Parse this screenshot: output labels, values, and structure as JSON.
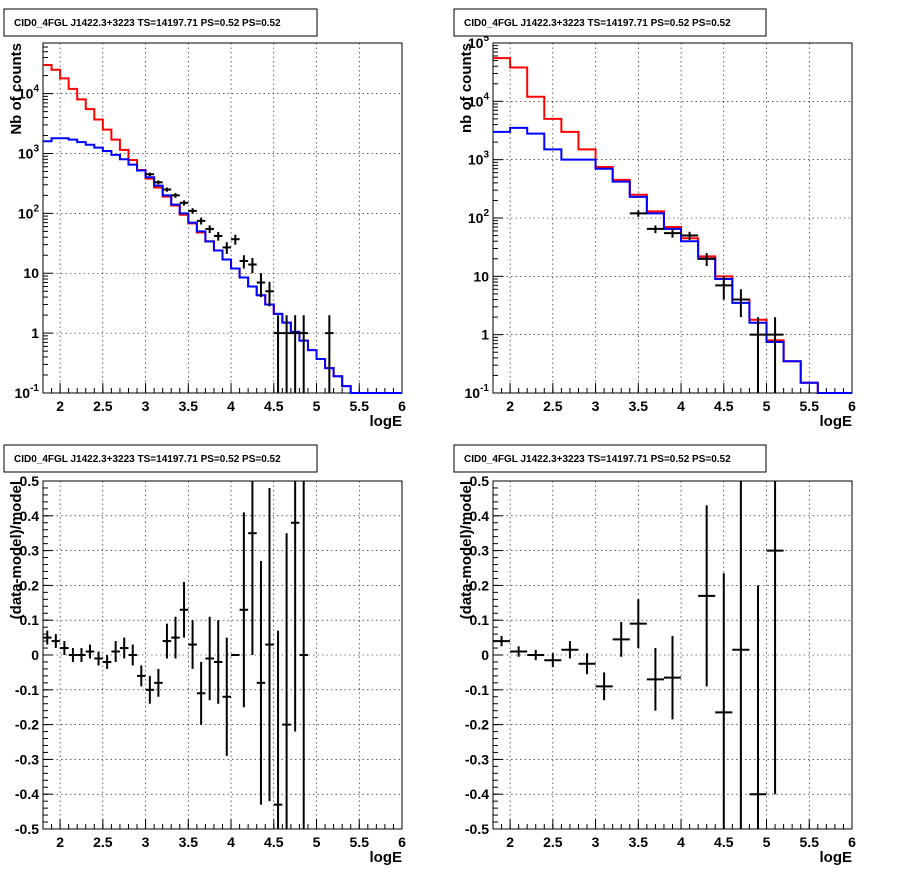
{
  "chart_data": [
    {
      "type": "line",
      "panel": "top-left",
      "title": "CID0_4FGL J1422.3+3223 TS=14197.71 PS=0.52 PS=0.52",
      "xlabel": "logE",
      "ylabel": "Nb of counts",
      "xlim": [
        1.8,
        6.0
      ],
      "ylim": [
        0.1,
        70000
      ],
      "log_y": true,
      "grid": true,
      "x_ticks": [
        "2",
        "2.5",
        "3",
        "3.5",
        "4",
        "4.5",
        "5",
        "5.5",
        "6"
      ],
      "y_ticks": [
        "10^-1",
        "1",
        "10",
        "10^2",
        "10^3",
        "10^4"
      ],
      "bin_edges": [
        1.8,
        1.9,
        2.0,
        2.1,
        2.2,
        2.3,
        2.4,
        2.5,
        2.6,
        2.7,
        2.8,
        2.9,
        3.0,
        3.1,
        3.2,
        3.3,
        3.4,
        3.5,
        3.6,
        3.7,
        3.8,
        3.9,
        4.0,
        4.1,
        4.2,
        4.3,
        4.4,
        4.5,
        4.6,
        4.7,
        4.8,
        4.9,
        5.0,
        5.1,
        5.2,
        5.3,
        5.4,
        5.5,
        5.6,
        5.7,
        5.8,
        5.9,
        6.0
      ],
      "series": [
        {
          "color": "#ff0000",
          "values": [
            30000,
            25000,
            18000,
            12000,
            8000,
            5500,
            3700,
            2500,
            1700,
            1150,
            780,
            530,
            380,
            270,
            190,
            135,
            95,
            68,
            48,
            34,
            24,
            17,
            12,
            8.5,
            6,
            4.3,
            3.0,
            2.1,
            1.5,
            1.05,
            0.75,
            0.52,
            0.37,
            0.26,
            0.19,
            0.13,
            0.09,
            0.09,
            0.09,
            0.09,
            0.09,
            0.09
          ]
        },
        {
          "color": "#0000ff",
          "values": [
            1600,
            1800,
            1800,
            1700,
            1550,
            1400,
            1250,
            1100,
            950,
            800,
            650,
            520,
            400,
            290,
            200,
            140,
            100,
            70,
            50,
            34,
            24,
            17,
            12,
            8.5,
            6,
            4.3,
            3.0,
            2.1,
            1.5,
            1.05,
            0.75,
            0.52,
            0.37,
            0.26,
            0.19,
            0.13,
            0.1,
            0.1,
            0.1,
            0.1,
            0.1,
            0.1
          ]
        }
      ],
      "points": [
        {
          "x": 3.05,
          "y": 450,
          "yerr": 30
        },
        {
          "x": 3.15,
          "y": 330,
          "yerr": 25
        },
        {
          "x": 3.25,
          "y": 250,
          "yerr": 20
        },
        {
          "x": 3.35,
          "y": 200,
          "yerr": 18
        },
        {
          "x": 3.45,
          "y": 150,
          "yerr": 15
        },
        {
          "x": 3.55,
          "y": 110,
          "yerr": 12
        },
        {
          "x": 3.65,
          "y": 75,
          "yerr": 10
        },
        {
          "x": 3.75,
          "y": 55,
          "yerr": 8
        },
        {
          "x": 3.85,
          "y": 42,
          "yerr": 7
        },
        {
          "x": 3.95,
          "y": 27,
          "yerr": 6
        },
        {
          "x": 4.05,
          "y": 37,
          "yerr": 7
        },
        {
          "x": 4.15,
          "y": 16,
          "yerr": 4
        },
        {
          "x": 4.25,
          "y": 14,
          "yerr": 4
        },
        {
          "x": 4.35,
          "y": 7,
          "yerr": 3
        },
        {
          "x": 4.45,
          "y": 5,
          "yerr": 2.2
        },
        {
          "x": 4.55,
          "y": 1,
          "yerr": 0.99
        },
        {
          "x": 4.65,
          "y": 1,
          "yerr": 0.99
        },
        {
          "x": 4.75,
          "y": 1,
          "yerr": 0.99
        },
        {
          "x": 4.85,
          "y": 1,
          "yerr": 0.99
        },
        {
          "x": 5.15,
          "y": 1,
          "yerr": 0.99
        }
      ]
    },
    {
      "type": "line",
      "panel": "top-right",
      "title": "CID0_4FGL J1422.3+3223 TS=14197.71 PS=0.52 PS=0.52",
      "xlabel": "logE",
      "ylabel": "nb of counts",
      "xlim": [
        1.8,
        6.0
      ],
      "ylim": [
        0.1,
        100000
      ],
      "log_y": true,
      "grid": true,
      "x_ticks": [
        "2",
        "2.5",
        "3",
        "3.5",
        "4",
        "4.5",
        "5",
        "5.5",
        "6"
      ],
      "y_ticks": [
        "10^-1",
        "1",
        "10",
        "10^2",
        "10^3",
        "10^4",
        "10^5"
      ],
      "bin_edges": [
        1.8,
        2.0,
        2.2,
        2.4,
        2.6,
        2.8,
        3.0,
        3.2,
        3.4,
        3.6,
        3.8,
        4.0,
        4.2,
        4.4,
        4.6,
        4.8,
        5.0,
        5.2,
        5.4,
        5.6,
        5.8,
        6.0
      ],
      "series": [
        {
          "color": "#ff0000",
          "values": [
            55000,
            38000,
            12000,
            5000,
            3000,
            1500,
            750,
            450,
            250,
            130,
            70,
            45,
            22,
            10,
            4,
            1.8,
            0.8,
            0.35,
            0.15,
            0.09,
            0.09
          ]
        },
        {
          "color": "#0000ff",
          "values": [
            3000,
            3500,
            2800,
            1500,
            1000,
            1000,
            700,
            420,
            230,
            120,
            65,
            40,
            20,
            9,
            3.5,
            1.6,
            0.75,
            0.35,
            0.15,
            0.1,
            0.1
          ]
        }
      ],
      "points": [
        {
          "x": 3.5,
          "y": 120,
          "yerr": 15
        },
        {
          "x": 3.7,
          "y": 65,
          "yerr": 10
        },
        {
          "x": 3.9,
          "y": 55,
          "yerr": 9
        },
        {
          "x": 4.1,
          "y": 50,
          "yerr": 8
        },
        {
          "x": 4.3,
          "y": 20,
          "yerr": 5
        },
        {
          "x": 4.5,
          "y": 7,
          "yerr": 3
        },
        {
          "x": 4.7,
          "y": 4,
          "yerr": 2
        },
        {
          "x": 4.9,
          "y": 1,
          "yerr": 0.99
        },
        {
          "x": 5.1,
          "y": 1,
          "yerr": 0.99
        }
      ]
    },
    {
      "type": "scatter",
      "panel": "bottom-left",
      "title": "CID0_4FGL J1422.3+3223 TS=14197.71 PS=0.52 PS=0.52",
      "xlabel": "logE",
      "ylabel": "(data-model)/model",
      "xlim": [
        1.8,
        6.0
      ],
      "ylim": [
        -0.5,
        0.5
      ],
      "grid": true,
      "x_ticks": [
        "2",
        "2.5",
        "3",
        "3.5",
        "4",
        "4.5",
        "5",
        "5.5",
        "6"
      ],
      "y_ticks": [
        "-0.5",
        "-0.4",
        "-0.3",
        "-0.2",
        "-0.1",
        "0",
        "0.1",
        "0.2",
        "0.3",
        "0.4",
        "0.5"
      ],
      "points": [
        {
          "x": 1.85,
          "y": 0.05,
          "yerr": 0.02
        },
        {
          "x": 1.95,
          "y": 0.04,
          "yerr": 0.02
        },
        {
          "x": 2.05,
          "y": 0.02,
          "yerr": 0.02
        },
        {
          "x": 2.15,
          "y": 0.0,
          "yerr": 0.02
        },
        {
          "x": 2.25,
          "y": 0.0,
          "yerr": 0.02
        },
        {
          "x": 2.35,
          "y": 0.01,
          "yerr": 0.02
        },
        {
          "x": 2.45,
          "y": -0.01,
          "yerr": 0.02
        },
        {
          "x": 2.55,
          "y": -0.02,
          "yerr": 0.02
        },
        {
          "x": 2.65,
          "y": 0.01,
          "yerr": 0.03
        },
        {
          "x": 2.75,
          "y": 0.02,
          "yerr": 0.03
        },
        {
          "x": 2.85,
          "y": 0.0,
          "yerr": 0.03
        },
        {
          "x": 2.95,
          "y": -0.06,
          "yerr": 0.03
        },
        {
          "x": 3.05,
          "y": -0.1,
          "yerr": 0.04
        },
        {
          "x": 3.15,
          "y": -0.08,
          "yerr": 0.04
        },
        {
          "x": 3.25,
          "y": 0.04,
          "yerr": 0.05
        },
        {
          "x": 3.35,
          "y": 0.05,
          "yerr": 0.06
        },
        {
          "x": 3.45,
          "y": 0.13,
          "yerr": 0.08
        },
        {
          "x": 3.55,
          "y": 0.03,
          "yerr": 0.07
        },
        {
          "x": 3.65,
          "y": -0.11,
          "yerr": 0.09
        },
        {
          "x": 3.75,
          "y": -0.01,
          "yerr": 0.12
        },
        {
          "x": 3.85,
          "y": -0.02,
          "yerr": 0.12
        },
        {
          "x": 3.95,
          "y": -0.12,
          "yerr": 0.17
        },
        {
          "x": 4.05,
          "y": 0.0,
          "yerr": 0.0
        },
        {
          "x": 4.15,
          "y": 0.13,
          "yerr": 0.28
        },
        {
          "x": 4.25,
          "y": 0.35,
          "yerr": 0.35
        },
        {
          "x": 4.35,
          "y": -0.08,
          "yerr": 0.35
        },
        {
          "x": 4.45,
          "y": 0.03,
          "yerr": 0.45
        },
        {
          "x": 4.55,
          "y": -0.43,
          "yerr": 0.5
        },
        {
          "x": 4.65,
          "y": -0.2,
          "yerr": 0.55
        },
        {
          "x": 4.75,
          "y": 0.38,
          "yerr": 0.6
        },
        {
          "x": 4.85,
          "y": 0.0,
          "yerr": 0.7
        }
      ]
    },
    {
      "type": "scatter",
      "panel": "bottom-right",
      "title": "CID0_4FGL J1422.3+3223 TS=14197.71 PS=0.52 PS=0.52",
      "xlabel": "logE",
      "ylabel": "(data-model)/model",
      "xlim": [
        1.8,
        6.0
      ],
      "ylim": [
        -0.5,
        0.5
      ],
      "grid": true,
      "x_ticks": [
        "2",
        "2.5",
        "3",
        "3.5",
        "4",
        "4.5",
        "5",
        "5.5",
        "6"
      ],
      "y_ticks": [
        "-0.5",
        "-0.4",
        "-0.3",
        "-0.2",
        "-0.1",
        "0",
        "0.1",
        "0.2",
        "0.3",
        "0.4",
        "0.5"
      ],
      "points": [
        {
          "x": 1.9,
          "y": 0.04,
          "yerr": 0.015
        },
        {
          "x": 2.1,
          "y": 0.01,
          "yerr": 0.015
        },
        {
          "x": 2.3,
          "y": 0.0,
          "yerr": 0.015
        },
        {
          "x": 2.5,
          "y": -0.015,
          "yerr": 0.02
        },
        {
          "x": 2.7,
          "y": 0.015,
          "yerr": 0.025
        },
        {
          "x": 2.9,
          "y": -0.025,
          "yerr": 0.03
        },
        {
          "x": 3.1,
          "y": -0.09,
          "yerr": 0.04
        },
        {
          "x": 3.3,
          "y": 0.045,
          "yerr": 0.05
        },
        {
          "x": 3.5,
          "y": 0.09,
          "yerr": 0.07
        },
        {
          "x": 3.7,
          "y": -0.07,
          "yerr": 0.09
        },
        {
          "x": 3.9,
          "y": -0.065,
          "yerr": 0.12
        },
        {
          "x": 4.3,
          "y": 0.17,
          "yerr": 0.26
        },
        {
          "x": 4.5,
          "y": -0.165,
          "yerr": 0.4
        },
        {
          "x": 4.7,
          "y": 0.015,
          "yerr": 0.6
        },
        {
          "x": 4.9,
          "y": -0.4,
          "yerr": 0.6
        },
        {
          "x": 5.1,
          "y": 0.3,
          "yerr": 0.7
        }
      ]
    }
  ]
}
